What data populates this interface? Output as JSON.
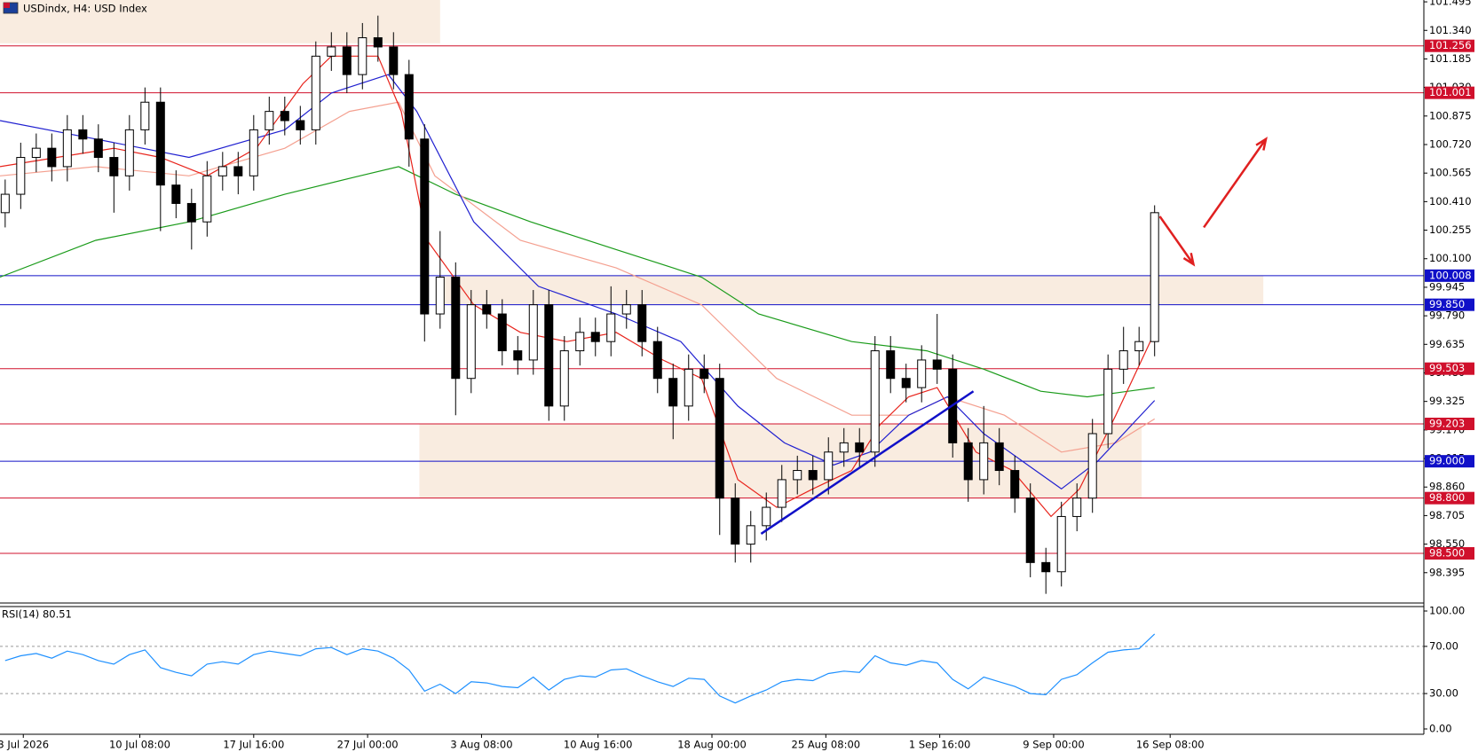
{
  "chart_data": {
    "type": "candlestick",
    "title": "USDindx, H4:  USD Index",
    "xlim": [
      0,
      550
    ],
    "xticks": [
      {
        "value": 9,
        "label": "3 Jul 2026"
      },
      {
        "value": 54,
        "label": "10 Jul 08:00"
      },
      {
        "value": 98,
        "label": "17 Jul 16:00"
      },
      {
        "value": 142,
        "label": "27 Jul 00:00"
      },
      {
        "value": 186,
        "label": "3 Aug 08:00"
      },
      {
        "value": 231,
        "label": "10 Aug 16:00"
      },
      {
        "value": 275,
        "label": "18 Aug 00:00"
      },
      {
        "value": 319,
        "label": "25 Aug 08:00"
      },
      {
        "value": 363,
        "label": "1 Sep 16:00"
      },
      {
        "value": 407,
        "label": "9 Sep 00:00"
      },
      {
        "value": 452,
        "label": "16 Sep 08:00"
      }
    ],
    "ylim": [
      98.235,
      101.505
    ],
    "yticks": [
      101.495,
      {
        "value": 101.34,
        "label": "101.340"
      },
      101.185,
      {
        "value": 101.03,
        "label": "101.030"
      },
      100.875,
      {
        "value": 100.72,
        "label": "100.720"
      },
      100.565,
      {
        "value": 100.41,
        "label": "100.410"
      },
      100.255,
      {
        "value": 100.1,
        "label": "100.100"
      },
      99.945,
      {
        "value": 99.79,
        "label": "99.790"
      },
      99.635,
      {
        "value": 99.48,
        "label": "99.480"
      },
      99.325,
      {
        "value": 99.17,
        "label": "99.170"
      },
      99.015,
      {
        "value": 98.86,
        "label": "98.860"
      },
      98.705,
      {
        "value": 98.55,
        "label": "98.550"
      },
      98.395
    ],
    "candles": {
      "x": [
        2,
        8,
        14,
        20,
        26,
        32,
        38,
        44,
        50,
        56,
        62,
        68,
        74,
        80,
        86,
        92,
        98,
        104,
        110,
        116,
        122,
        128,
        134,
        140,
        146,
        152,
        158,
        164,
        170,
        176,
        182,
        188,
        194,
        200,
        206,
        212,
        218,
        224,
        230,
        236,
        242,
        248,
        254,
        260,
        266,
        272,
        278,
        284,
        290,
        296,
        302,
        308,
        314,
        320,
        326,
        332,
        338,
        344,
        350,
        356,
        362,
        368,
        374,
        380,
        386,
        392,
        398,
        404,
        410,
        416,
        422,
        428,
        434,
        440,
        446
      ],
      "open": [
        100.35,
        100.45,
        100.65,
        100.7,
        100.6,
        100.8,
        100.75,
        100.65,
        100.55,
        100.8,
        100.95,
        100.5,
        100.4,
        100.3,
        100.55,
        100.6,
        100.55,
        100.8,
        100.9,
        100.85,
        100.8,
        101.2,
        101.25,
        101.1,
        101.3,
        101.25,
        101.1,
        100.75,
        99.8,
        100.0,
        99.45,
        99.85,
        99.8,
        99.6,
        99.55,
        99.85,
        99.3,
        99.6,
        99.7,
        99.65,
        99.8,
        99.85,
        99.65,
        99.45,
        99.3,
        99.5,
        99.45,
        98.8,
        98.55,
        98.65,
        98.75,
        98.9,
        98.95,
        98.9,
        99.05,
        99.1,
        99.05,
        99.6,
        99.45,
        99.4,
        99.55,
        99.5,
        99.1,
        98.9,
        99.1,
        98.95,
        98.8,
        98.45,
        98.4,
        98.7,
        98.8,
        99.15,
        99.5,
        99.6,
        99.65
      ],
      "high": [
        100.53,
        100.73,
        100.78,
        100.78,
        100.88,
        100.88,
        100.83,
        100.73,
        100.88,
        101.03,
        101.03,
        100.58,
        100.48,
        100.63,
        100.68,
        100.68,
        100.88,
        100.98,
        100.98,
        100.93,
        101.28,
        101.33,
        101.33,
        101.38,
        101.42,
        101.33,
        101.18,
        100.83,
        100.25,
        100.08,
        99.93,
        99.93,
        99.88,
        99.68,
        99.93,
        99.93,
        99.68,
        99.78,
        99.78,
        99.95,
        99.93,
        99.93,
        99.73,
        99.53,
        99.58,
        99.58,
        99.53,
        98.88,
        98.73,
        98.83,
        98.98,
        99.03,
        99.03,
        99.13,
        99.18,
        99.18,
        99.68,
        99.68,
        99.53,
        99.63,
        99.8,
        99.58,
        99.18,
        99.3,
        99.18,
        99.03,
        98.88,
        98.53,
        98.78,
        98.88,
        99.23,
        99.58,
        99.73,
        99.73,
        100.39
      ],
      "low": [
        100.27,
        100.37,
        100.57,
        100.52,
        100.52,
        100.67,
        100.57,
        100.35,
        100.47,
        100.72,
        100.25,
        100.32,
        100.15,
        100.22,
        100.47,
        100.45,
        100.47,
        100.72,
        100.77,
        100.72,
        100.72,
        101.12,
        101.0,
        101.02,
        101.17,
        101.02,
        100.6,
        99.65,
        99.72,
        99.25,
        99.37,
        99.72,
        99.52,
        99.47,
        99.47,
        99.22,
        99.22,
        99.52,
        99.57,
        99.57,
        99.72,
        99.57,
        99.37,
        99.12,
        99.22,
        99.37,
        98.6,
        98.45,
        98.45,
        98.57,
        98.67,
        98.82,
        98.82,
        98.82,
        98.97,
        98.97,
        98.97,
        99.37,
        99.32,
        99.32,
        99.42,
        99.02,
        98.78,
        98.82,
        98.87,
        98.72,
        98.37,
        98.28,
        98.32,
        98.62,
        98.72,
        99.07,
        99.42,
        99.52,
        99.57
      ],
      "close": [
        100.45,
        100.65,
        100.7,
        100.6,
        100.8,
        100.75,
        100.65,
        100.55,
        100.8,
        100.95,
        100.5,
        100.4,
        100.3,
        100.55,
        100.6,
        100.55,
        100.8,
        100.9,
        100.85,
        100.8,
        101.2,
        101.25,
        101.1,
        101.3,
        101.25,
        101.1,
        100.75,
        99.8,
        100.0,
        99.45,
        99.85,
        99.8,
        99.6,
        99.55,
        99.85,
        99.3,
        99.6,
        99.7,
        99.65,
        99.8,
        99.85,
        99.65,
        99.45,
        99.3,
        99.5,
        99.45,
        98.8,
        98.55,
        98.65,
        98.75,
        98.9,
        98.95,
        98.9,
        99.05,
        99.1,
        99.05,
        99.6,
        99.45,
        99.4,
        99.55,
        99.5,
        99.1,
        98.9,
        99.1,
        98.95,
        98.8,
        98.45,
        98.4,
        98.7,
        98.8,
        99.15,
        99.5,
        99.6,
        99.65,
        100.35
      ],
      "up_color": "#ffffff",
      "down_color": "#000000"
    },
    "series": [
      {
        "color": "#1a9b1a",
        "x": [
          0,
          37,
          73,
          110,
          139,
          154,
          176,
          205,
          238,
          271,
          293,
          329,
          358,
          380,
          402,
          420,
          446
        ],
        "values": [
          100.0,
          100.2,
          100.3,
          100.45,
          100.55,
          100.6,
          100.45,
          100.3,
          100.15,
          100.0,
          99.8,
          99.65,
          99.6,
          99.5,
          99.38,
          99.35,
          99.4
        ]
      },
      {
        "color": "#f4a090",
        "x": [
          0,
          37,
          73,
          110,
          135,
          154,
          168,
          201,
          238,
          271,
          300,
          329,
          351,
          366,
          388,
          410,
          431,
          446
        ],
        "values": [
          100.55,
          100.6,
          100.55,
          100.7,
          100.9,
          100.95,
          100.55,
          100.2,
          100.05,
          99.85,
          99.45,
          99.25,
          99.25,
          99.35,
          99.25,
          99.05,
          99.1,
          99.23
        ]
      },
      {
        "color": "#2020d0",
        "x": [
          0,
          37,
          73,
          110,
          128,
          150,
          161,
          183,
          208,
          238,
          263,
          285,
          303,
          322,
          336,
          351,
          366,
          380,
          395,
          410,
          424,
          446
        ],
        "values": [
          100.85,
          100.75,
          100.65,
          100.8,
          101.0,
          101.1,
          100.9,
          100.3,
          99.95,
          99.8,
          99.65,
          99.3,
          99.1,
          98.98,
          99.05,
          99.25,
          99.35,
          99.15,
          99.0,
          98.85,
          99.0,
          99.33
        ]
      },
      {
        "color": "#e8241c",
        "x": [
          0,
          22,
          44,
          62,
          80,
          99,
          117,
          128,
          146,
          155,
          165,
          183,
          201,
          219,
          238,
          256,
          271,
          285,
          300,
          314,
          329,
          340,
          351,
          362,
          377,
          391,
          406,
          417,
          431,
          446
        ],
        "values": [
          100.6,
          100.65,
          100.7,
          100.65,
          100.55,
          100.7,
          101.05,
          101.2,
          101.2,
          100.9,
          100.2,
          99.85,
          99.7,
          99.65,
          99.7,
          99.55,
          99.45,
          98.9,
          98.75,
          98.85,
          98.95,
          99.2,
          99.35,
          99.4,
          99.05,
          98.95,
          98.7,
          98.85,
          99.25,
          99.7
        ]
      }
    ],
    "levels": [
      {
        "value": 101.256,
        "label": "101.256",
        "color": "#d0102c"
      },
      {
        "value": 101.001,
        "label": "101.001",
        "color": "#d0102c"
      },
      {
        "value": 100.008,
        "label": "100.008",
        "color": "#1010c8"
      },
      {
        "value": 99.85,
        "label": "99.850",
        "color": "#1010c8"
      },
      {
        "value": 99.503,
        "label": "99.503",
        "color": "#d0102c"
      },
      {
        "value": 99.203,
        "label": "99.203",
        "color": "#d0102c"
      },
      {
        "value": 99,
        "label": "99.000",
        "color": "#1010c8"
      },
      {
        "value": 98.8,
        "label": "98.800",
        "color": "#d0102c"
      },
      {
        "value": 98.5,
        "label": "98.500",
        "color": "#d0102c"
      }
    ],
    "zones": [
      {
        "x": [
          0,
          170
        ],
        "y": [
          101.27,
          101.505
        ]
      },
      {
        "x": [
          170,
          488
        ],
        "y": [
          99.85,
          100.008
        ]
      },
      {
        "x": [
          162,
          441
        ],
        "y": [
          98.8,
          99.203
        ]
      }
    ],
    "zone_color": "#f9ece0",
    "trendline": {
      "color": "#1010c8",
      "x": [
        294,
        376
      ],
      "y": [
        98.606,
        99.38
      ]
    },
    "arrows": [
      {
        "color": "#e02020",
        "x": [
          448,
          461
        ],
        "y": [
          100.33,
          100.07
        ]
      },
      {
        "color": "#e02020",
        "x": [
          465,
          489
        ],
        "y": [
          100.27,
          100.75
        ]
      }
    ],
    "rsi": {
      "label": "RSI(14) 80.51",
      "color": "#1e90ff",
      "ylim": [
        0,
        100
      ],
      "yticks": [
        {
          "value": 100,
          "label": "100.00"
        },
        {
          "value": 70,
          "label": "70.00"
        },
        {
          "value": 30,
          "label": "30.00"
        },
        {
          "value": 0,
          "label": "0.00"
        }
      ],
      "values": [
        58,
        62,
        64,
        60,
        66,
        63,
        58,
        55,
        63,
        67,
        52,
        48,
        45,
        55,
        57,
        55,
        63,
        66,
        64,
        62,
        68,
        69,
        63,
        68,
        66,
        60,
        50,
        32,
        38,
        30,
        40,
        39,
        36,
        35,
        44,
        33,
        42,
        45,
        44,
        50,
        51,
        45,
        40,
        36,
        43,
        42,
        28,
        22,
        28,
        33,
        40,
        42,
        41,
        47,
        49,
        48,
        62,
        56,
        54,
        58,
        56,
        42,
        34,
        44,
        40,
        36,
        30,
        29,
        42,
        46,
        56,
        65,
        67,
        68,
        80.51
      ]
    }
  }
}
